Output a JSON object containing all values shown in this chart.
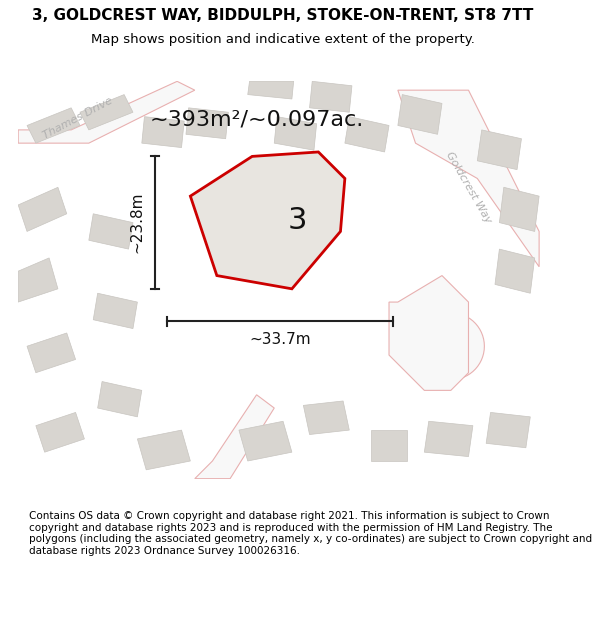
{
  "title": "3, GOLDCREST WAY, BIDDULPH, STOKE-ON-TRENT, ST8 7TT",
  "subtitle": "Map shows position and indicative extent of the property.",
  "area_text": "~393m²/~0.097ac.",
  "width_label": "~33.7m",
  "height_label": "~23.8m",
  "property_number": "3",
  "footer": "Contains OS data © Crown copyright and database right 2021. This information is subject to Crown copyright and database rights 2023 and is reproduced with the permission of HM Land Registry. The polygons (including the associated geometry, namely x, y co-ordinates) are subject to Crown copyright and database rights 2023 Ordnance Survey 100026316.",
  "bg_color": "#f0eeea",
  "map_bg": "#f5f3f0",
  "road_fill": "#ffffff",
  "building_fill": "#d8d5d0",
  "property_fill": "#e8e5e0",
  "property_outline": "#cc0000",
  "road_outline": "#e8b0b0",
  "street_label_color": "#aaaaaa",
  "annotation_color": "#222222",
  "title_fontsize": 11,
  "subtitle_fontsize": 9.5,
  "area_fontsize": 16,
  "footer_fontsize": 7.5,
  "figsize": [
    6.0,
    6.25
  ],
  "dpi": 100
}
